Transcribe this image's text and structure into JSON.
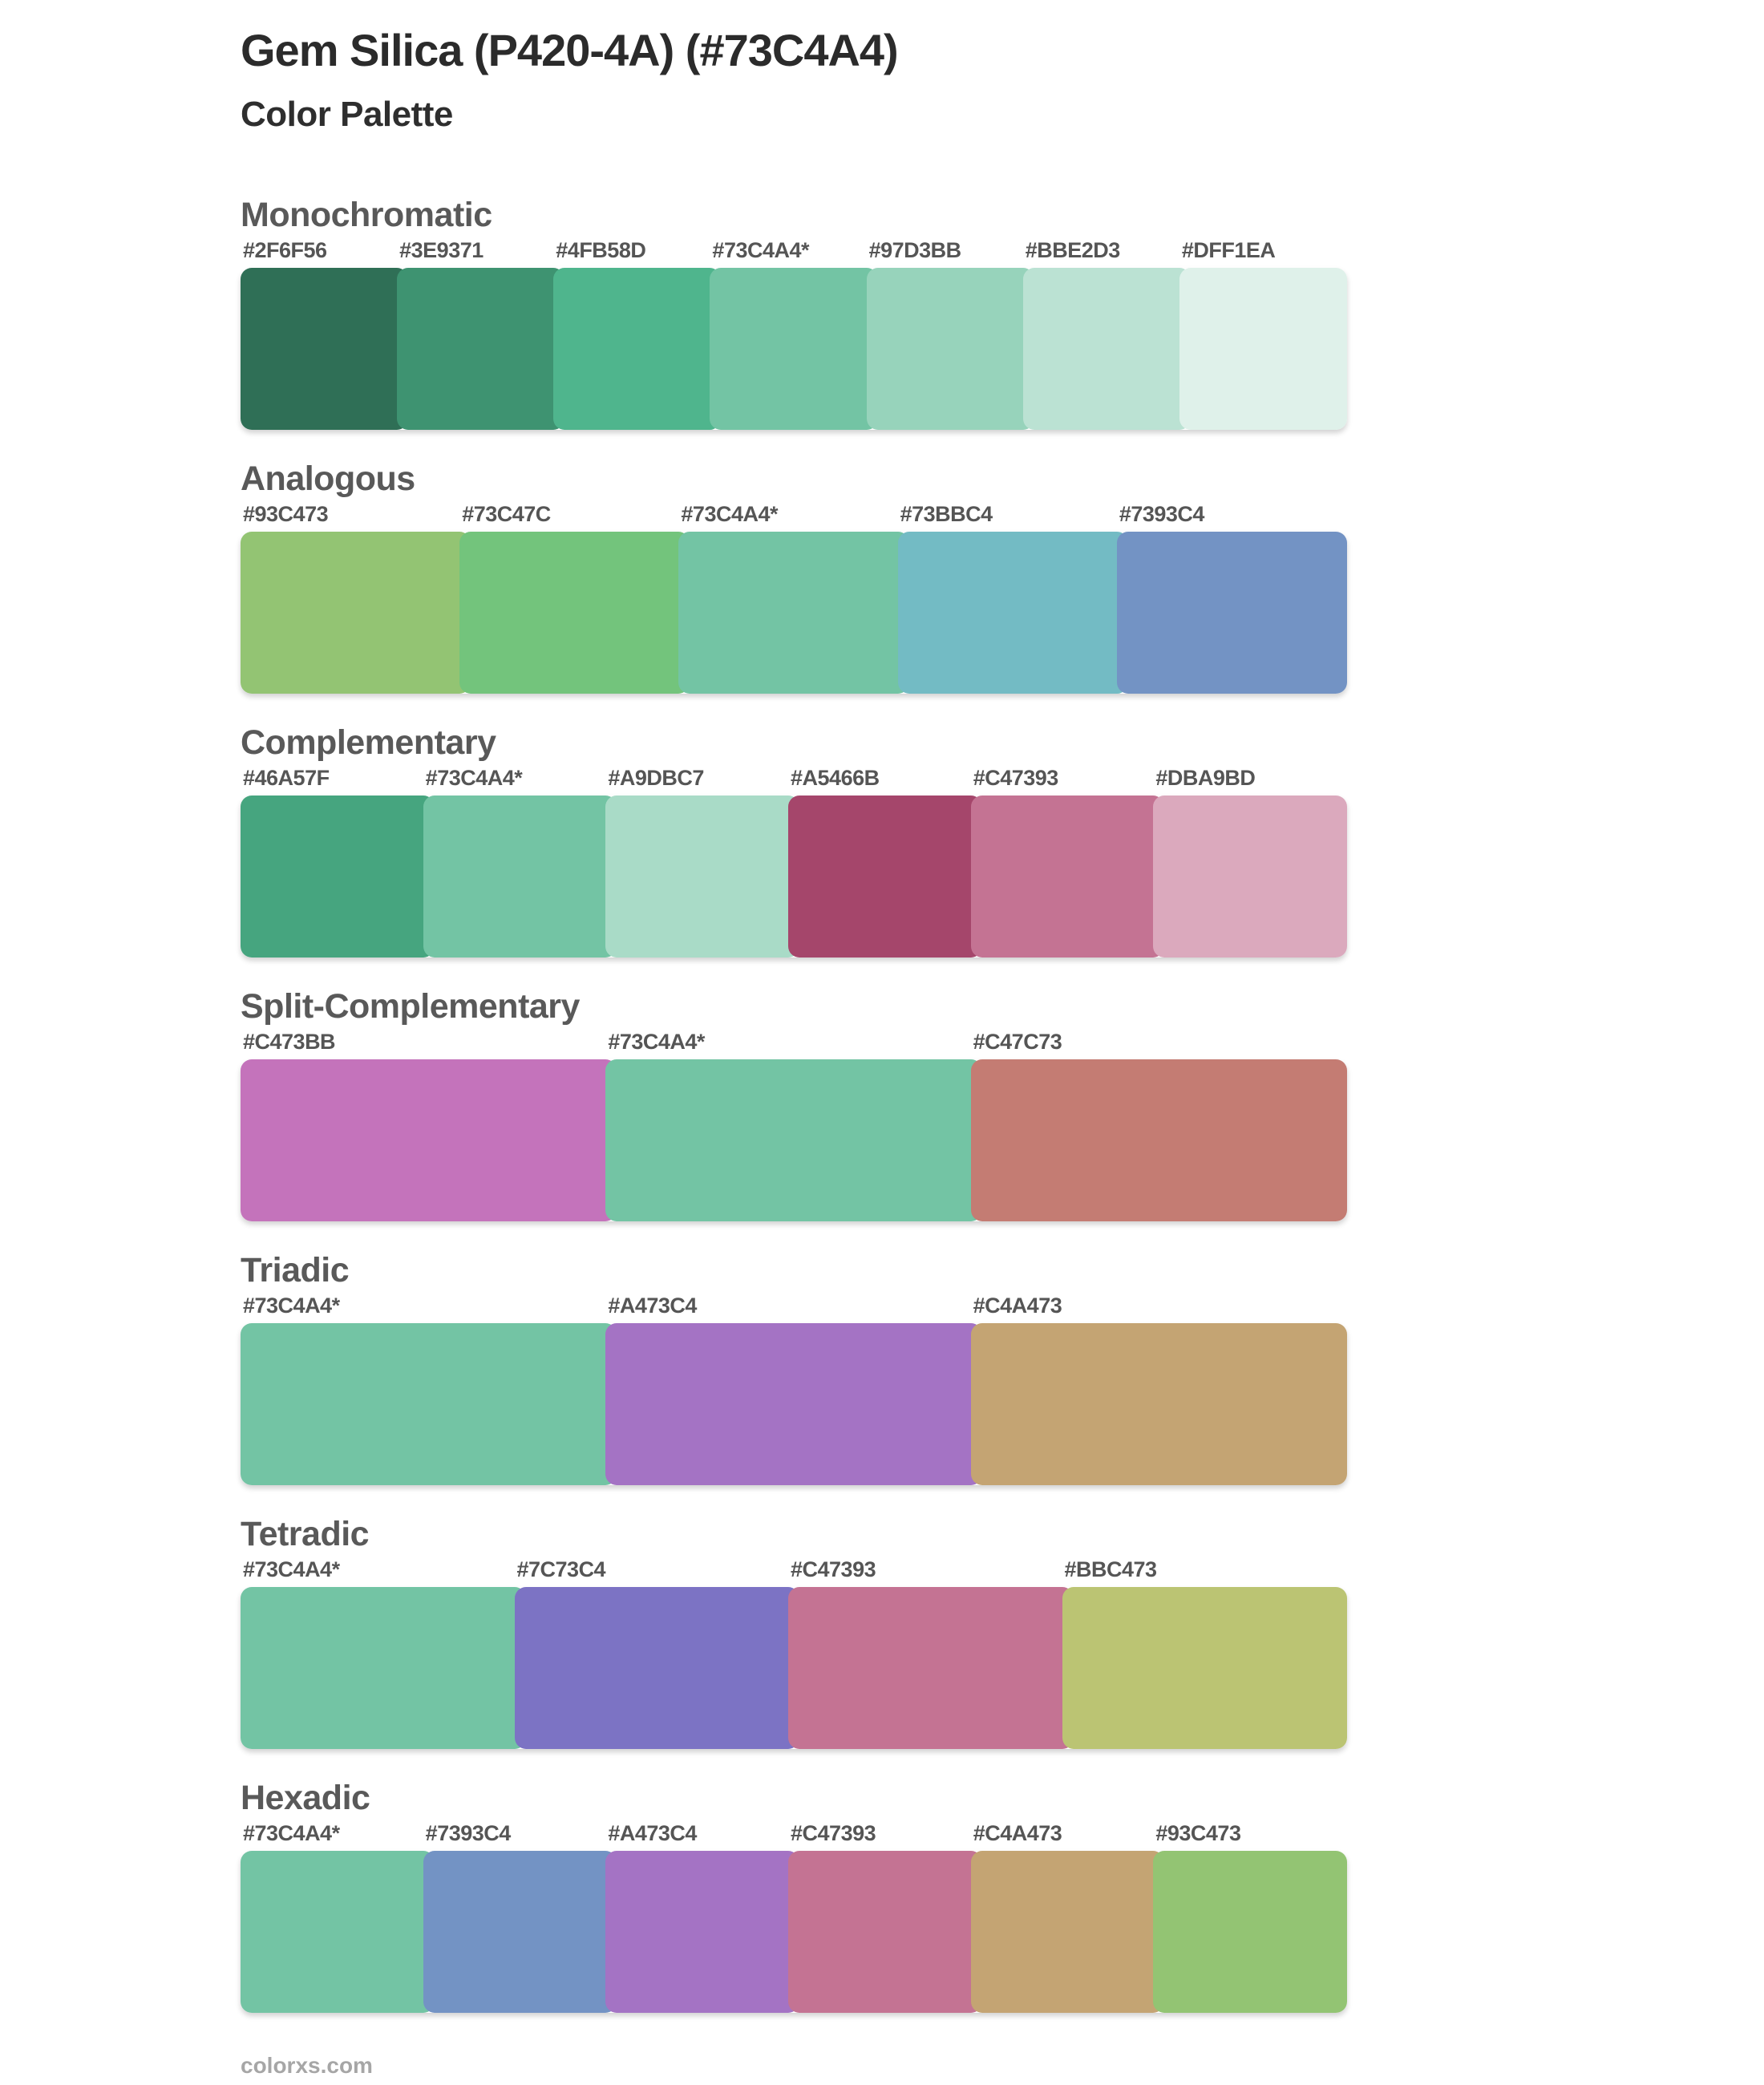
{
  "page": {
    "title": "Gem Silica (P420-4A) (#73C4A4)",
    "subtitle": "Color Palette",
    "footer": "colorxs.com"
  },
  "style": {
    "background": "#ffffff",
    "title_color": "#2b2b2b",
    "heading_color": "#595959",
    "hex_label_color": "#555555",
    "footer_color": "#a6a6a6",
    "base_color": "#73C4A4"
  },
  "chart_data": {
    "type": "table",
    "title": "Gem Silica (P420-4A) (#73C4A4)",
    "subtitle": "Color Palette",
    "base_color": "#73C4A4",
    "base_marker": "*",
    "sections": [
      {
        "name": "Monochromatic",
        "colors": [
          "#2F6F56",
          "#3E9371",
          "#4FB58D",
          "#73C4A4*",
          "#97D3BB",
          "#BBE2D3",
          "#DFF1EA"
        ]
      },
      {
        "name": "Analogous",
        "colors": [
          "#93C473",
          "#73C47C",
          "#73C4A4*",
          "#73BBC4",
          "#7393C4"
        ]
      },
      {
        "name": "Complementary",
        "colors": [
          "#46A57F",
          "#73C4A4*",
          "#A9DBC7",
          "#A5466B",
          "#C47393",
          "#DBA9BD"
        ]
      },
      {
        "name": "Split-Complementary",
        "colors": [
          "#C473BB",
          "#73C4A4*",
          "#C47C73"
        ]
      },
      {
        "name": "Triadic",
        "colors": [
          "#73C4A4*",
          "#A473C4",
          "#C4A473"
        ]
      },
      {
        "name": "Tetradic",
        "colors": [
          "#73C4A4*",
          "#7C73C4",
          "#C47393",
          "#BBC473"
        ]
      },
      {
        "name": "Hexadic",
        "colors": [
          "#73C4A4*",
          "#7393C4",
          "#A473C4",
          "#C47393",
          "#C4A473",
          "#93C473"
        ]
      }
    ]
  }
}
